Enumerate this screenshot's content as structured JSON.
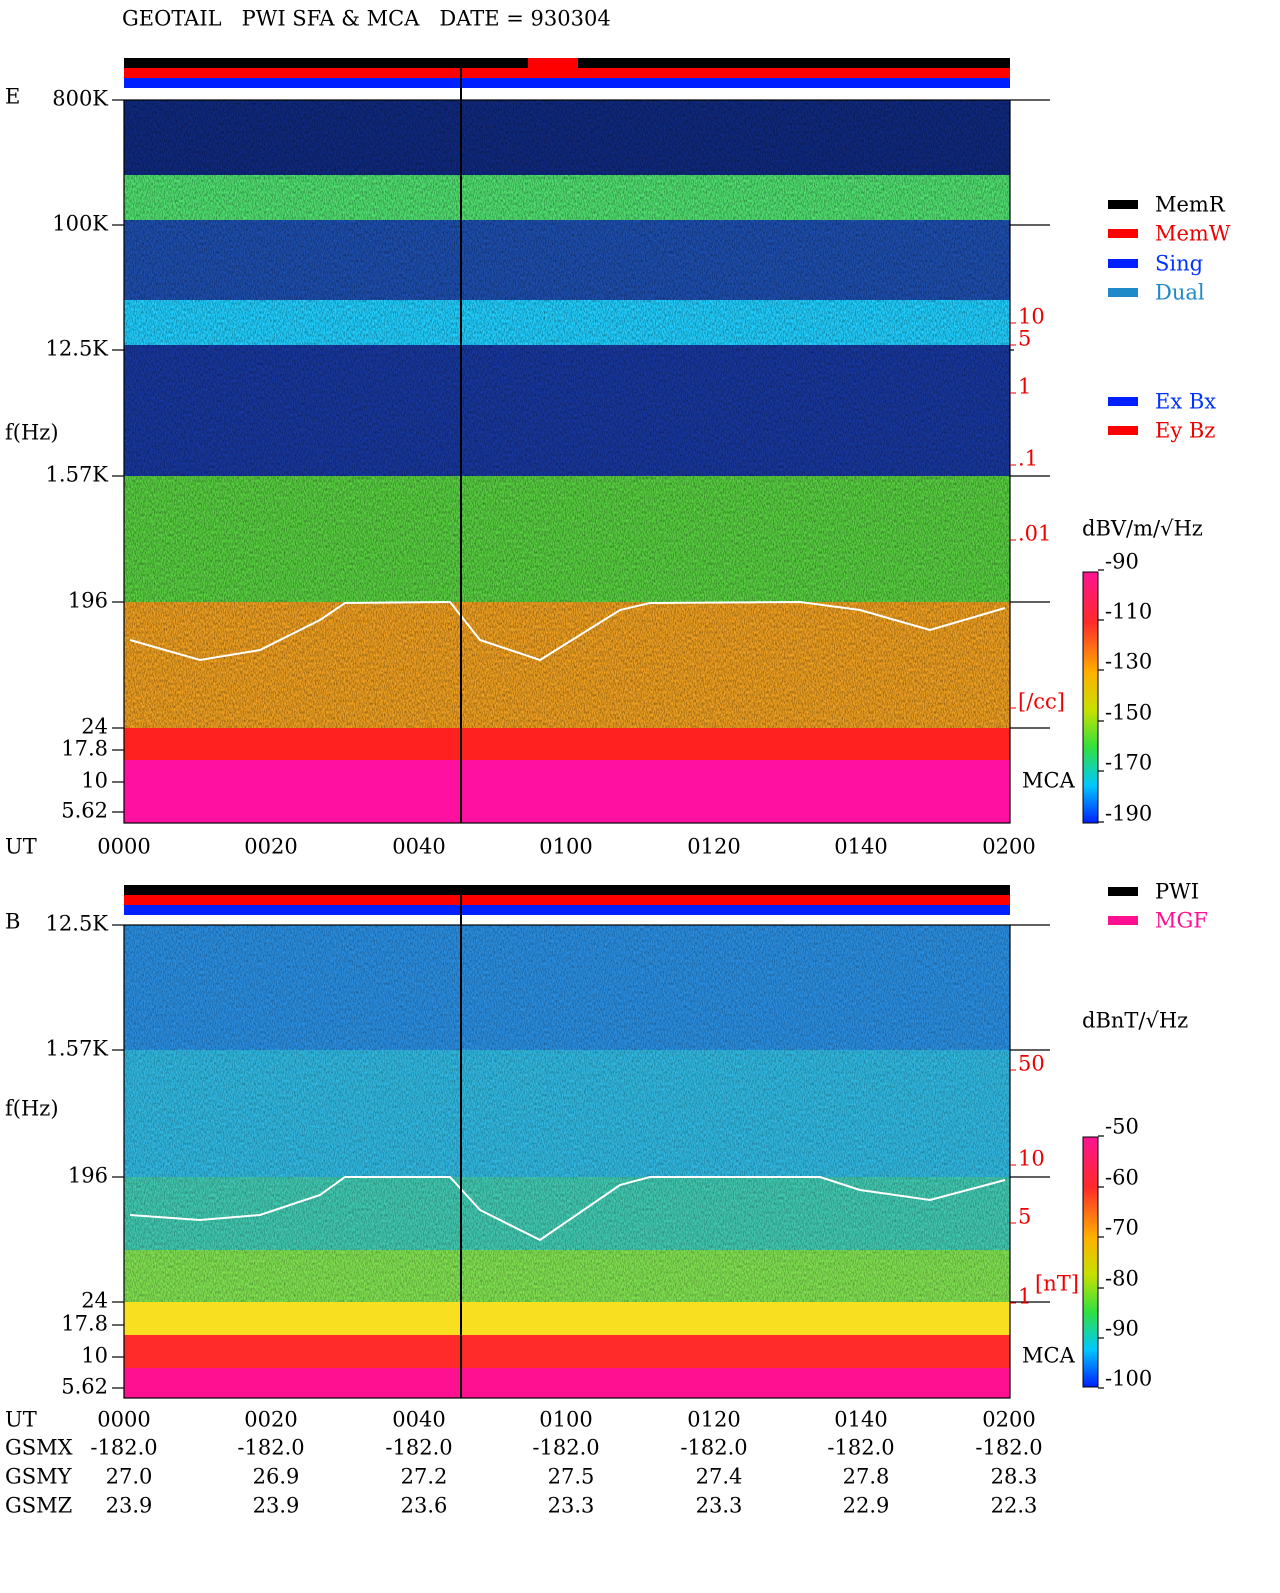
{
  "title": "GEOTAIL   PWI SFA & MCA   DATE = 930304",
  "panel_e": {
    "label": "E",
    "y_label": "f(Hz)",
    "y_ticks": [
      "800K",
      "100K",
      "12.5K",
      "1.57K",
      "196",
      "24",
      "17.8",
      "10",
      "5.62"
    ],
    "density_ticks": [
      "10",
      "5",
      "1",
      ".1",
      ".01",
      "[/cc]"
    ],
    "mca_label": "MCA",
    "x_label": "UT",
    "x_ticks": [
      "0000",
      "0020",
      "0040",
      "0100",
      "0120",
      "0140",
      "0200"
    ],
    "legend_mode": [
      "MemR",
      "MemW",
      "Sing",
      "Dual"
    ],
    "legend_antenna": [
      "Ex Bx",
      "Ey Bz"
    ],
    "colorbar": {
      "title": "dBV/m/√Hz",
      "ticks": [
        "-90",
        "-110",
        "-130",
        "-150",
        "-170",
        "-190"
      ]
    }
  },
  "panel_b": {
    "label": "B",
    "y_label": "f(Hz)",
    "y_ticks": [
      "12.5K",
      "1.57K",
      "196",
      "24",
      "17.8",
      "10",
      "5.62"
    ],
    "field_ticks": [
      "50",
      "10",
      "5",
      "1",
      "[nT]"
    ],
    "mca_label": "MCA",
    "legend_source": [
      "PWI",
      "MGF"
    ],
    "colorbar": {
      "title": "dBnT/√Hz",
      "ticks": [
        "-50",
        "-60",
        "-70",
        "-80",
        "-90",
        "-100"
      ]
    }
  },
  "orbit": {
    "header": "UT",
    "times": [
      "0000",
      "0020",
      "0040",
      "0100",
      "0120",
      "0140",
      "0200"
    ],
    "rows": [
      {
        "name": "GSMX",
        "values": [
          "-182.0",
          "-182.0",
          "-182.0",
          "-182.0",
          "-182.0",
          "-182.0",
          "-182.0"
        ]
      },
      {
        "name": "GSMY",
        "values": [
          "27.0",
          "26.9",
          "27.2",
          "27.5",
          "27.4",
          "27.8",
          "28.3"
        ]
      },
      {
        "name": "GSMZ",
        "values": [
          "23.9",
          "23.9",
          "23.6",
          "23.3",
          "23.3",
          "22.9",
          "22.3"
        ]
      }
    ]
  }
}
